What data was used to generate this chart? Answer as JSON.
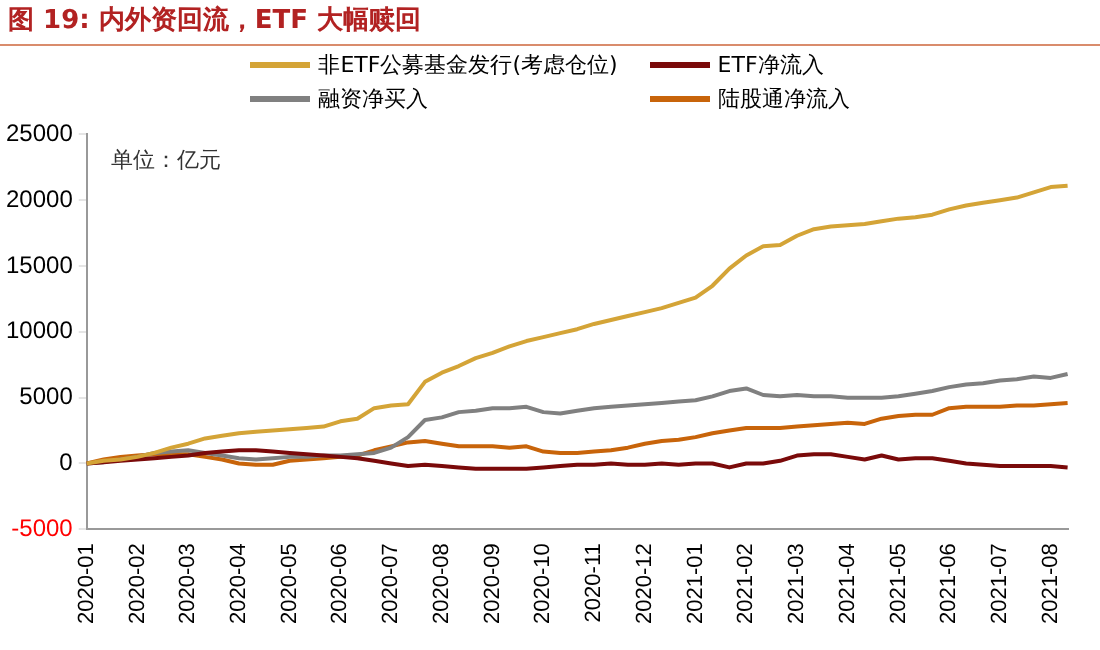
{
  "chart_data": {
    "type": "line",
    "title": "图 19: 内外资回流，ETF 大幅赎回",
    "annotations": [
      "单位：亿元"
    ],
    "categories": [
      "2020-01",
      null,
      null,
      "2020-02",
      null,
      null,
      "2020-03",
      null,
      null,
      "2020-04",
      null,
      null,
      "2020-05",
      null,
      null,
      "2020-06",
      null,
      null,
      "2020-07",
      null,
      null,
      "2020-08",
      null,
      null,
      "2020-09",
      null,
      null,
      "2020-10",
      null,
      null,
      "2020-11",
      null,
      null,
      "2020-12",
      null,
      null,
      "2021-01",
      null,
      null,
      "2021-02",
      null,
      null,
      "2021-03",
      null,
      null,
      "2021-04",
      null,
      null,
      "2021-05",
      null,
      null,
      "2021-06",
      null,
      null,
      "2021-07",
      null,
      null,
      "2021-08",
      null
    ],
    "series": [
      {
        "name": "非ETF公募基金发行(考虑仓位)",
        "color": "#d4a437",
        "values": [
          0,
          200,
          300,
          500,
          800,
          1200,
          1500,
          1900,
          2100,
          2300,
          2400,
          2500,
          2600,
          2700,
          2800,
          3200,
          3400,
          4200,
          4400,
          4500,
          6200,
          6900,
          7400,
          8000,
          8400,
          8900,
          9300,
          9600,
          9900,
          10200,
          10600,
          10900,
          11200,
          11500,
          11800,
          12200,
          12600,
          13500,
          14800,
          15800,
          16500,
          16600,
          17300,
          17800,
          18000,
          18100,
          18200,
          18400,
          18600,
          18700,
          18900,
          19300,
          19600,
          19800,
          20000,
          20200,
          20600,
          21000,
          21100
        ]
      },
      {
        "name": "ETF净流入",
        "color": "#7a0a0a",
        "values": [
          0,
          100,
          200,
          300,
          400,
          500,
          600,
          800,
          900,
          1000,
          1000,
          900,
          800,
          700,
          600,
          500,
          400,
          200,
          0,
          -200,
          -100,
          -200,
          -300,
          -400,
          -400,
          -400,
          -400,
          -300,
          -200,
          -100,
          -100,
          0,
          -100,
          -100,
          0,
          -100,
          0,
          0,
          -300,
          0,
          0,
          200,
          600,
          700,
          700,
          500,
          300,
          600,
          300,
          400,
          400,
          200,
          0,
          -100,
          -200,
          -200,
          -200,
          -200,
          -300
        ]
      },
      {
        "name": "融资净买入",
        "color": "#808080",
        "values": [
          0,
          100,
          300,
          500,
          800,
          900,
          1000,
          800,
          600,
          400,
          300,
          400,
          500,
          500,
          600,
          600,
          700,
          800,
          1200,
          2000,
          3300,
          3500,
          3900,
          4000,
          4200,
          4200,
          4300,
          3900,
          3800,
          4000,
          4200,
          4300,
          4400,
          4500,
          4600,
          4700,
          4800,
          5100,
          5500,
          5700,
          5200,
          5100,
          5200,
          5100,
          5100,
          5000,
          5000,
          5000,
          5100,
          5300,
          5500,
          5800,
          6000,
          6100,
          6300,
          6400,
          6600,
          6500,
          6800
        ]
      },
      {
        "name": "陆股通净流入",
        "color": "#c8640a",
        "values": [
          0,
          300,
          500,
          600,
          700,
          700,
          700,
          500,
          300,
          0,
          -100,
          -100,
          200,
          300,
          400,
          500,
          600,
          1000,
          1300,
          1600,
          1700,
          1500,
          1300,
          1300,
          1300,
          1200,
          1300,
          900,
          800,
          800,
          900,
          1000,
          1200,
          1500,
          1700,
          1800,
          2000,
          2300,
          2500,
          2700,
          2700,
          2700,
          2800,
          2900,
          3000,
          3100,
          3000,
          3400,
          3600,
          3700,
          3700,
          4200,
          4300,
          4300,
          4300,
          4400,
          4400,
          4500,
          4600
        ]
      }
    ],
    "ylim": [
      -5000,
      25000
    ],
    "yticks": [
      -5000,
      0,
      5000,
      10000,
      15000,
      20000,
      25000
    ],
    "grid": false,
    "legend": "top",
    "marker": "none",
    "line_style": "solid"
  }
}
